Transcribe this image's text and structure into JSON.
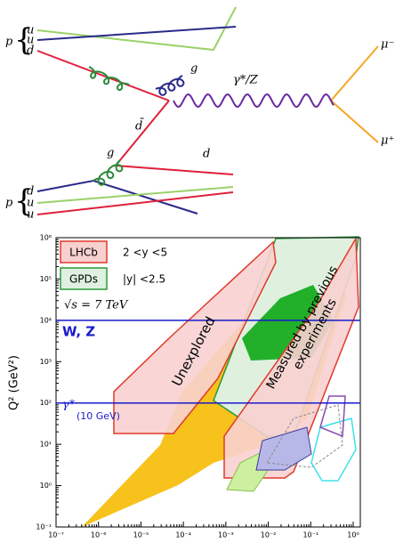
{
  "diagram": {
    "proton_top": {
      "label": "p",
      "quarks": [
        "u",
        "u",
        "d"
      ]
    },
    "proton_bottom": {
      "label": "p",
      "quarks": [
        "d",
        "u",
        "u"
      ]
    },
    "gluon_top": "g",
    "gluon_bottom": "g",
    "boson": "γ*/Z",
    "antiquark": "d̄",
    "quark": "d",
    "muon_minus": "μ⁻",
    "muon_plus": "μ⁺"
  },
  "chart_data": {
    "type": "region",
    "ylabel": "Q² (GeV²)",
    "xlog": true,
    "ylog": true,
    "xlim": [
      1e-07,
      1
    ],
    "ylim": [
      0.1,
      1000000
    ],
    "xticks": [
      {
        "value": 1e-07,
        "label": "10⁻⁷"
      },
      {
        "value": 1e-06,
        "label": "10⁻⁶"
      },
      {
        "value": 1e-05,
        "label": "10⁻⁵"
      },
      {
        "value": 0.0001,
        "label": "10⁻⁴"
      },
      {
        "value": 0.001,
        "label": "10⁻³"
      },
      {
        "value": 0.01,
        "label": "10⁻²"
      },
      {
        "value": 0.1,
        "label": "10⁻¹"
      },
      {
        "value": 1,
        "label": "10⁰"
      }
    ],
    "yticks": [
      {
        "value": 0.1,
        "label": "10⁻¹"
      },
      {
        "value": 1,
        "label": "10⁰"
      },
      {
        "value": 10,
        "label": "10¹"
      },
      {
        "value": 100,
        "label": "10²"
      },
      {
        "value": 1000,
        "label": "10³"
      },
      {
        "value": 10000,
        "label": "10⁴"
      },
      {
        "value": 100000,
        "label": "10⁵"
      },
      {
        "value": 1000000,
        "label": "10⁶"
      }
    ],
    "reference_lines": [
      {
        "label": "W, Z",
        "value": 10000,
        "color": "#1a1acc"
      },
      {
        "label": "γ*",
        "sublabel": "(10 GeV)",
        "value": 100,
        "color": "#1a1acc"
      }
    ],
    "legend": [
      {
        "name": "LHCb",
        "range": "2 <y <5",
        "color": "#f8d0d0",
        "edge": "#e03a2a"
      },
      {
        "name": "GPDs",
        "range": "|y| <2.5",
        "color": "#dff0df",
        "edge": "#2a9a3a"
      }
    ],
    "energy": "√s = 7 TeV",
    "annotations": {
      "unexplored": "Unexplored",
      "measured": [
        "Measured by previous",
        "experiments"
      ]
    }
  }
}
